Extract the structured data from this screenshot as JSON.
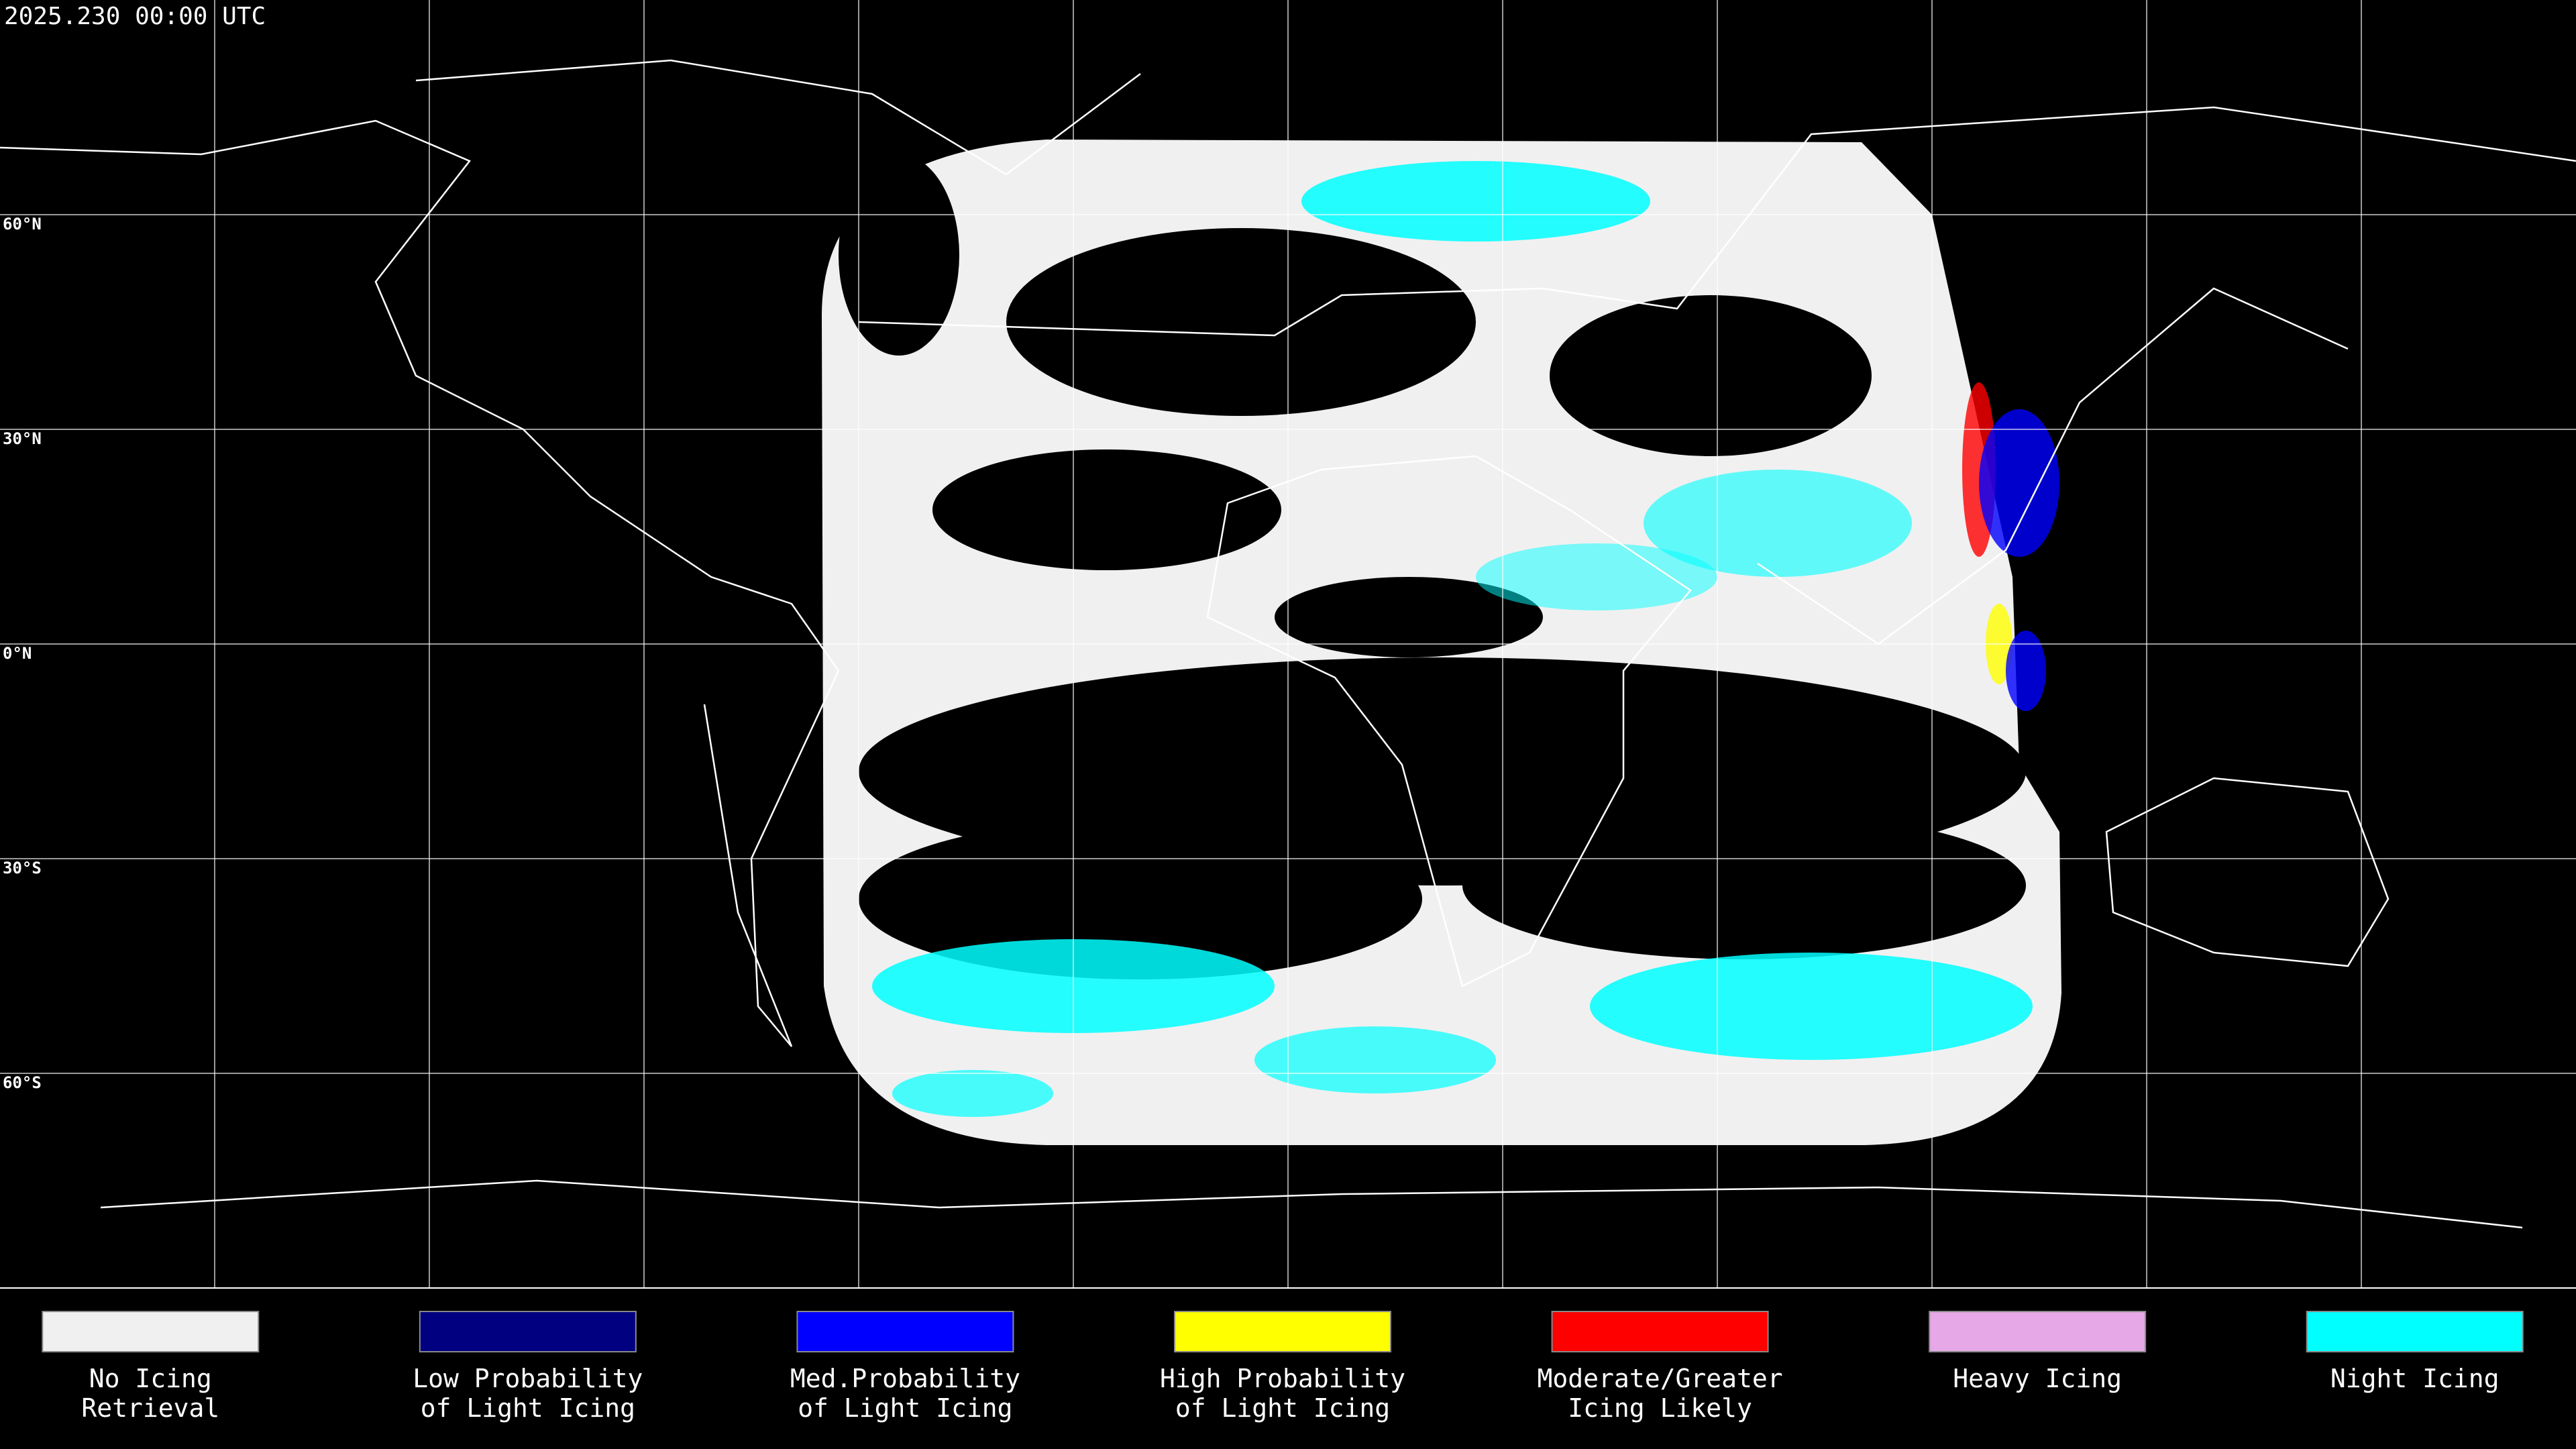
{
  "header": {
    "title": "2025.230 00:00 UTC"
  },
  "map": {
    "lat_labels": [
      "60°N",
      "30°N",
      "0°N",
      "30°S",
      "60°S"
    ]
  },
  "legend": [
    {
      "color": "#f0f0f0",
      "lines": [
        "No Icing",
        "Retrieval"
      ]
    },
    {
      "color": "#000080",
      "lines": [
        "Low Probability",
        "of Light Icing"
      ]
    },
    {
      "color": "#0000ff",
      "lines": [
        "Med.Probability",
        "of Light Icing"
      ]
    },
    {
      "color": "#ffff00",
      "lines": [
        "High Probability",
        "of Light Icing"
      ]
    },
    {
      "color": "#ff0000",
      "lines": [
        "Moderate/Greater",
        "Icing Likely"
      ]
    },
    {
      "color": "#e6a8e6",
      "lines": [
        "Heavy Icing"
      ]
    },
    {
      "color": "#00ffff",
      "lines": [
        "Night Icing"
      ]
    }
  ]
}
